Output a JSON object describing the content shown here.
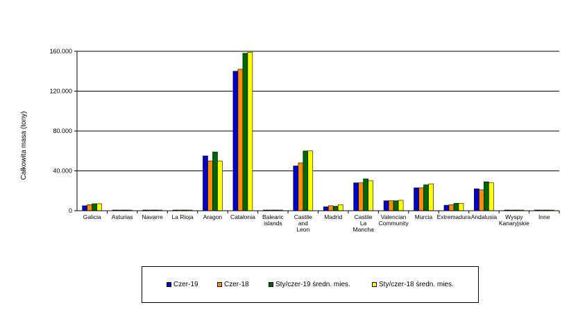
{
  "chart_data": {
    "type": "bar",
    "ylabel": "Całkowita masa (tony)",
    "xlabel": "",
    "ylim": [
      0,
      160000
    ],
    "yticks": [
      {
        "value": 0,
        "label": "0"
      },
      {
        "value": 40000,
        "label": "40.000"
      },
      {
        "value": 80000,
        "label": "80.000"
      },
      {
        "value": 120000,
        "label": "120.000"
      },
      {
        "value": 160000,
        "label": "160.000"
      }
    ],
    "grid": true,
    "legend_position": "bottom",
    "categories": [
      [
        "Galicia"
      ],
      [
        "Asturias"
      ],
      [
        "Navarre"
      ],
      [
        "La Rioja"
      ],
      [
        "Aragon"
      ],
      [
        "Catalonia"
      ],
      [
        "Balearic",
        "islands"
      ],
      [
        "Castile",
        "and",
        "Leon"
      ],
      [
        "Madrid"
      ],
      [
        "Castile",
        "La",
        "Mancha"
      ],
      [
        "Valencian",
        "Community"
      ],
      [
        "Murcia"
      ],
      [
        "Extremadura"
      ],
      [
        "Andalusia"
      ],
      [
        "Wyspy",
        "Kanaryjskie"
      ],
      [
        "Inne"
      ]
    ],
    "series": [
      {
        "name": "Czer-19",
        "color": "#0000CC",
        "values": [
          5000,
          300,
          300,
          300,
          55000,
          140000,
          300,
          45000,
          4000,
          28000,
          10000,
          23000,
          5500,
          22000,
          200,
          200
        ]
      },
      {
        "name": "Czer-18",
        "color": "#FF8C00",
        "values": [
          6000,
          300,
          300,
          300,
          50000,
          142000,
          300,
          48000,
          5000,
          28000,
          10000,
          23000,
          6000,
          21000,
          200,
          200
        ]
      },
      {
        "name": "Sty/czer-19 średn. mies.",
        "color": "#006600",
        "values": [
          7000,
          400,
          400,
          300,
          59000,
          158000,
          300,
          60000,
          4500,
          32000,
          10000,
          26000,
          7500,
          29000,
          200,
          200
        ]
      },
      {
        "name": "Sty/czer-18 średn. mies.",
        "color": "#FFFF00",
        "values": [
          7000,
          400,
          400,
          300,
          50000,
          159000,
          300,
          60000,
          6000,
          30000,
          10500,
          27000,
          7500,
          28000,
          200,
          200
        ]
      }
    ]
  }
}
